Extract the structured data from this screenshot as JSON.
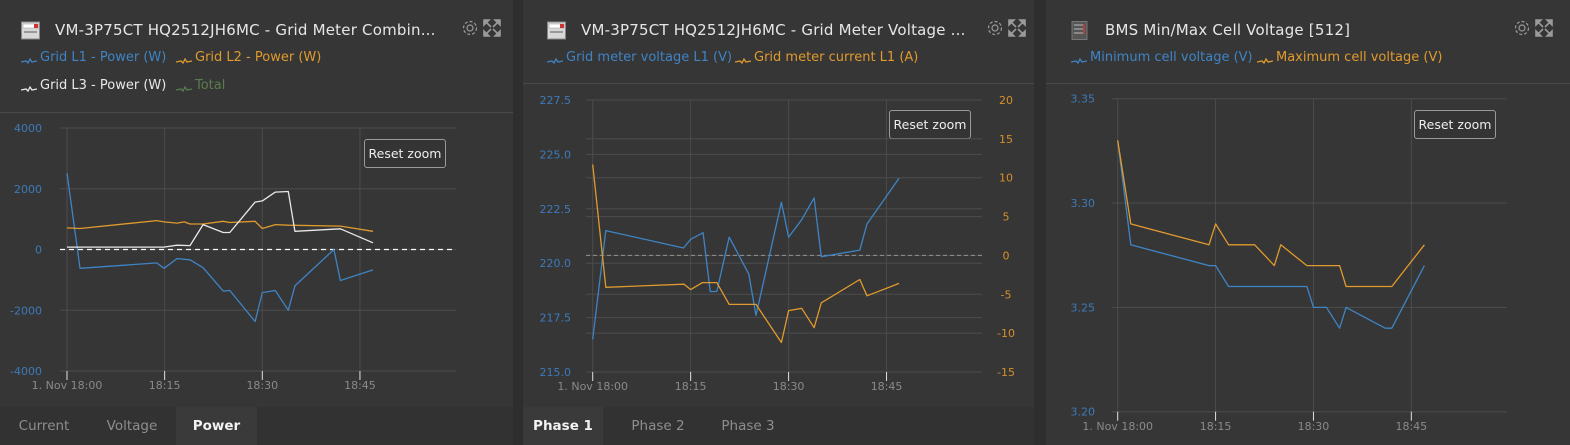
{
  "colors": {
    "blue": "#3f84c4",
    "orange": "#e09a2e",
    "white": "#e8e8e8",
    "green": "#5a7d4e",
    "axis_blue": "#3d7ab8",
    "axis_orange": "#d48f2a",
    "tick": "#8a8a8a"
  },
  "common": {
    "reset_zoom": "Reset zoom",
    "gear_icon": "gear-icon",
    "expand_icon": "expand-icon"
  },
  "panels": [
    {
      "title": "VM-3P75CT HQ2512JH6MC - Grid Meter Combin...",
      "icon": "grid-meter-icon",
      "legend": [
        {
          "label": "Grid L1 - Power (W)",
          "color": "#3f84c4"
        },
        {
          "label": "Grid L2 - Power (W)",
          "color": "#e09a2e"
        },
        {
          "label": "Grid L3 - Power (W)",
          "color": "#e8e8e8"
        },
        {
          "label": "Total",
          "color": "#5a7d4e"
        }
      ],
      "tabs": [
        {
          "label": "Current"
        },
        {
          "label": "Voltage"
        },
        {
          "label": "Power",
          "active": true
        }
      ]
    },
    {
      "title": "VM-3P75CT HQ2512JH6MC - Grid Meter Voltage ...",
      "icon": "grid-meter-icon",
      "legend": [
        {
          "label": "Grid meter voltage L1 (V)",
          "color": "#3f84c4"
        },
        {
          "label": "Grid meter current L1 (A)",
          "color": "#e09a2e"
        }
      ],
      "tabs": [
        {
          "label": "Phase 1",
          "active": true
        },
        {
          "label": "Phase 2"
        },
        {
          "label": "Phase 3"
        }
      ]
    },
    {
      "title": "BMS Min/Max Cell Voltage [512]",
      "icon": "battery-bms-icon",
      "legend": [
        {
          "label": "Minimum cell voltage (V)",
          "color": "#3f84c4"
        },
        {
          "label": "Maximum cell voltage (V)",
          "color": "#e09a2e"
        }
      ]
    }
  ],
  "chart_data": [
    {
      "type": "line",
      "title": "Grid Meter Combined Power",
      "x_unit": "minutes after 1. Nov 18:00",
      "x_ticks": [
        {
          "v": 0,
          "label": "1. Nov 18:00"
        },
        {
          "v": 15,
          "label": "18:15"
        },
        {
          "v": 30,
          "label": "18:30"
        },
        {
          "v": 45,
          "label": "18:45"
        }
      ],
      "y_ticks": [
        {
          "v": 4000,
          "label": "4000"
        },
        {
          "v": 2000,
          "label": "2000"
        },
        {
          "v": 0,
          "label": "0"
        },
        {
          "v": -2000,
          "label": "-2000"
        },
        {
          "v": -4000,
          "label": "-4000"
        }
      ],
      "ylim": [
        -4000,
        4000
      ],
      "xlim": [
        0,
        60
      ],
      "grid": true,
      "zero_line": true,
      "series": [
        {
          "name": "Grid L1 - Power (W)",
          "color": "#3f84c4",
          "points": [
            [
              0,
              2520
            ],
            [
              2,
              -620
            ],
            [
              13.8,
              -440
            ],
            [
              14.9,
              -620
            ],
            [
              16.9,
              -300
            ],
            [
              18.9,
              -340
            ],
            [
              20.9,
              -600
            ],
            [
              24,
              -1370
            ],
            [
              25,
              -1350
            ],
            [
              28.9,
              -2370
            ],
            [
              30,
              -1420
            ],
            [
              32,
              -1350
            ],
            [
              34,
              -2000
            ],
            [
              35,
              -1200
            ],
            [
              41,
              0
            ],
            [
              42,
              -1020
            ],
            [
              47,
              -670
            ]
          ]
        },
        {
          "name": "Grid L2 - Power (W)",
          "color": "#e09a2e",
          "points": [
            [
              0,
              710
            ],
            [
              2,
              690
            ],
            [
              13.8,
              950
            ],
            [
              14.9,
              910
            ],
            [
              16.9,
              870
            ],
            [
              18,
              910
            ],
            [
              18.9,
              840
            ],
            [
              20.9,
              840
            ],
            [
              24,
              930
            ],
            [
              25,
              890
            ],
            [
              28.9,
              930
            ],
            [
              30,
              690
            ],
            [
              32,
              820
            ],
            [
              34,
              800
            ],
            [
              42,
              770
            ],
            [
              47,
              600
            ]
          ]
        },
        {
          "name": "Grid L3 - Power (W)",
          "color": "#e8e8e8",
          "points": [
            [
              0,
              80
            ],
            [
              14.9,
              80
            ],
            [
              16.9,
              140
            ],
            [
              18.9,
              130
            ],
            [
              20.9,
              820
            ],
            [
              24,
              560
            ],
            [
              25,
              560
            ],
            [
              28.9,
              1560
            ],
            [
              30,
              1600
            ],
            [
              32,
              1890
            ],
            [
              34,
              1910
            ],
            [
              35,
              600
            ],
            [
              42,
              680
            ],
            [
              47,
              220
            ]
          ]
        }
      ]
    },
    {
      "type": "line",
      "title": "Grid Meter Voltage",
      "x_unit": "minutes after 1. Nov 18:00",
      "x_ticks": [
        {
          "v": 0,
          "label": "1. Nov 18:00"
        },
        {
          "v": 15,
          "label": "18:15"
        },
        {
          "v": 30,
          "label": "18:30"
        },
        {
          "v": 45,
          "label": "18:45"
        }
      ],
      "y_ticks": [
        {
          "v": 227.5,
          "label": "227.5"
        },
        {
          "v": 225,
          "label": "225.0"
        },
        {
          "v": 222.5,
          "label": "222.5"
        },
        {
          "v": 220,
          "label": "220.0"
        },
        {
          "v": 217.5,
          "label": "217.5"
        },
        {
          "v": 215,
          "label": "215.0"
        }
      ],
      "y2_ticks": [
        {
          "v": 20,
          "label": "20"
        },
        {
          "v": 15,
          "label": "15"
        },
        {
          "v": 10,
          "label": "10"
        },
        {
          "v": 5,
          "label": "5"
        },
        {
          "v": 0,
          "label": "0"
        },
        {
          "v": -5,
          "label": "-5"
        },
        {
          "v": -10,
          "label": "-10"
        },
        {
          "v": -15,
          "label": "-15"
        }
      ],
      "ylim": [
        215,
        227.5
      ],
      "y2lim": [
        -15,
        20
      ],
      "xlim": [
        0,
        60
      ],
      "grid": true,
      "zero_line": true,
      "series": [
        {
          "name": "Grid meter voltage L1 (V)",
          "axis": "left",
          "color": "#3f84c4",
          "points": [
            [
              0,
              216.5
            ],
            [
              2,
              221.5
            ],
            [
              13.9,
              220.7
            ],
            [
              15,
              221.1
            ],
            [
              16.9,
              221.4
            ],
            [
              18,
              218.7
            ],
            [
              19,
              218.7
            ],
            [
              20.9,
              221.2
            ],
            [
              23.9,
              219.5
            ],
            [
              25,
              217.6
            ],
            [
              28.9,
              222.8
            ],
            [
              30,
              221.2
            ],
            [
              32,
              222.0
            ],
            [
              33.9,
              223.0
            ],
            [
              35,
              220.3
            ],
            [
              40.9,
              220.6
            ],
            [
              42,
              221.8
            ],
            [
              46.9,
              223.9
            ]
          ]
        },
        {
          "name": "Grid meter current L1 (A)",
          "axis": "right",
          "color": "#e09a2e",
          "points": [
            [
              0,
              11.7
            ],
            [
              2,
              -4.1
            ],
            [
              14,
              -3.7
            ],
            [
              15,
              -4.4
            ],
            [
              16.8,
              -3.5
            ],
            [
              19,
              -3.5
            ],
            [
              20.9,
              -6.3
            ],
            [
              25,
              -6.3
            ],
            [
              28.9,
              -11.2
            ],
            [
              30,
              -7.1
            ],
            [
              32,
              -6.8
            ],
            [
              33.9,
              -9.3
            ],
            [
              35,
              -6.1
            ],
            [
              40.9,
              -3.1
            ],
            [
              42,
              -5.2
            ],
            [
              46.9,
              -3.6
            ]
          ]
        }
      ]
    },
    {
      "type": "line",
      "title": "BMS Min/Max Cell Voltage [512]",
      "x_unit": "minutes after 1. Nov 18:00",
      "x_ticks": [
        {
          "v": 0,
          "label": "1. Nov 18:00"
        },
        {
          "v": 15,
          "label": "18:15"
        },
        {
          "v": 30,
          "label": "18:30"
        },
        {
          "v": 45,
          "label": "18:45"
        }
      ],
      "y_ticks": [
        {
          "v": 3.35,
          "label": "3.35"
        },
        {
          "v": 3.3,
          "label": "3.30"
        },
        {
          "v": 3.25,
          "label": "3.25"
        },
        {
          "v": 3.2,
          "label": "3.20"
        }
      ],
      "ylim": [
        3.2,
        3.35
      ],
      "xlim": [
        0,
        60
      ],
      "grid": true,
      "series": [
        {
          "name": "Minimum cell voltage (V)",
          "color": "#3f84c4",
          "points": [
            [
              0,
              3.33
            ],
            [
              2,
              3.28
            ],
            [
              14,
              3.27
            ],
            [
              15,
              3.27
            ],
            [
              17,
              3.26
            ],
            [
              29,
              3.26
            ],
            [
              30,
              3.25
            ],
            [
              32,
              3.25
            ],
            [
              34,
              3.24
            ],
            [
              35,
              3.25
            ],
            [
              41,
              3.24
            ],
            [
              42,
              3.24
            ],
            [
              47,
              3.27
            ]
          ]
        },
        {
          "name": "Maximum cell voltage (V)",
          "color": "#e09a2e",
          "points": [
            [
              0,
              3.33
            ],
            [
              2,
              3.29
            ],
            [
              14,
              3.28
            ],
            [
              15,
              3.29
            ],
            [
              17,
              3.28
            ],
            [
              21,
              3.28
            ],
            [
              24,
              3.27
            ],
            [
              25,
              3.28
            ],
            [
              29,
              3.27
            ],
            [
              34,
              3.27
            ],
            [
              35,
              3.26
            ],
            [
              42,
              3.26
            ],
            [
              47,
              3.28
            ]
          ]
        }
      ]
    }
  ]
}
